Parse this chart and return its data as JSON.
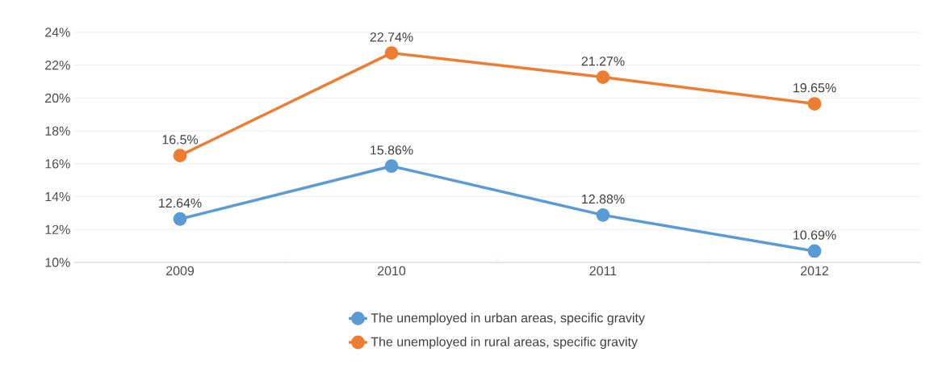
{
  "chart_data": {
    "type": "line",
    "categories": [
      "2009",
      "2010",
      "2011",
      "2012"
    ],
    "series": [
      {
        "name": "The unemployed in urban areas, specific gravity",
        "color": "#5b9bd5",
        "values": [
          12.64,
          15.86,
          12.88,
          10.69
        ],
        "value_labels": [
          "12.64%",
          "15.86%",
          "12.88%",
          "10.69%"
        ]
      },
      {
        "name": "The unemployed in rural areas, specific gravity",
        "color": "#ed7d31",
        "values": [
          16.5,
          22.74,
          21.27,
          19.65
        ],
        "value_labels": [
          "16.5%",
          "22.74%",
          "21.27%",
          "19.65%"
        ]
      }
    ],
    "ylim": [
      10,
      24
    ],
    "yticks": [
      {
        "value": 10,
        "label": "10%"
      },
      {
        "value": 12,
        "label": "12%"
      },
      {
        "value": 14,
        "label": "14%"
      },
      {
        "value": 16,
        "label": "16%"
      },
      {
        "value": 18,
        "label": "18%"
      },
      {
        "value": 20,
        "label": "20%"
      },
      {
        "value": 22,
        "label": "22%"
      },
      {
        "value": 24,
        "label": "24%"
      }
    ],
    "grid": "y",
    "legend": "bottom",
    "marker": "circle",
    "line_style": "solid"
  }
}
